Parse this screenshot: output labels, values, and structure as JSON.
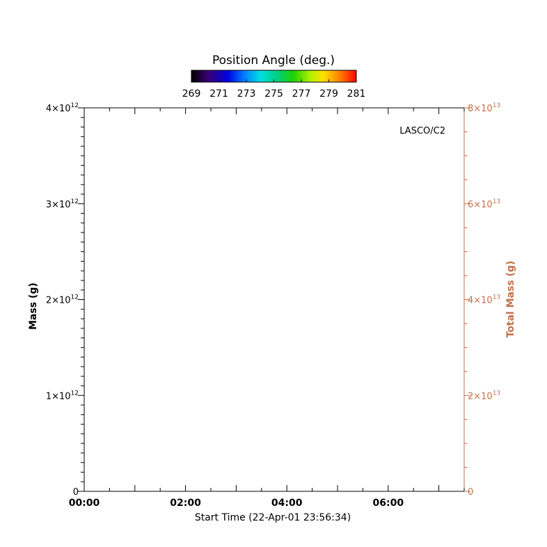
{
  "chart_data": {
    "type": "scatter",
    "title": "",
    "instrument_label": "LASCO/C2",
    "xlabel": "Start Time (22-Apr-01 23:56:34)",
    "ylabel": "Mass (g)",
    "y2label": "Total Mass (g)",
    "x_tick_labels": [
      "00:00",
      "02:00",
      "04:00",
      "06:00"
    ],
    "x_tick_hours": [
      0,
      2,
      4,
      6
    ],
    "xlim_hours": [
      0,
      7.5
    ],
    "ylim": [
      0,
      4000000000000.0
    ],
    "y_ticks": [
      {
        "base": "0",
        "exp": ""
      },
      {
        "base": "1×10",
        "exp": "12"
      },
      {
        "base": "2×10",
        "exp": "12"
      },
      {
        "base": "3×10",
        "exp": "12"
      },
      {
        "base": "4×10",
        "exp": "12"
      }
    ],
    "y_tick_values": [
      0,
      1000000000000.0,
      2000000000000.0,
      3000000000000.0,
      4000000000000.0
    ],
    "y2lim": [
      0,
      80000000000000.0
    ],
    "y2_ticks": [
      {
        "base": "0",
        "exp": ""
      },
      {
        "base": "2×10",
        "exp": "13"
      },
      {
        "base": "4×10",
        "exp": "13"
      },
      {
        "base": "6×10",
        "exp": "13"
      },
      {
        "base": "8×10",
        "exp": "13"
      }
    ],
    "y2_tick_values": [
      0,
      20000000000000.0,
      40000000000000.0,
      60000000000000.0,
      80000000000000.0
    ],
    "series": [],
    "colorbar": {
      "title": "Position Angle (deg.)",
      "min": 269,
      "max": 281,
      "tick_labels": [
        "269",
        "271",
        "273",
        "275",
        "277",
        "279",
        "281"
      ]
    },
    "colors": {
      "axis_left": "#000000",
      "axis_right": "#c0714a"
    },
    "grid": false
  }
}
